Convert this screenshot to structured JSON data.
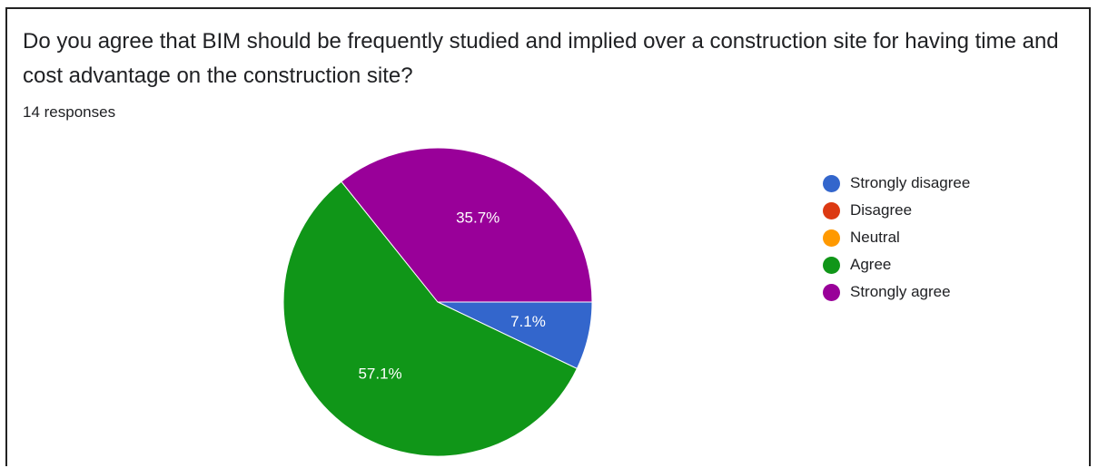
{
  "question": "Do you agree that BIM should be frequently studied and implied over a construction site for having time and cost advantage on the construction site?",
  "responses_text": "14 responses",
  "chart_data": {
    "type": "pie",
    "title": "Do you agree that BIM should be frequently studied and implied over a construction site for having time and cost advantage on the construction site?",
    "total_responses": 14,
    "legend_position": "right",
    "slices": [
      {
        "label": "Strongly disagree",
        "value": 7.1,
        "color": "#3366cc",
        "data_label": "7.1%"
      },
      {
        "label": "Disagree",
        "value": 0,
        "color": "#dc3912",
        "data_label": ""
      },
      {
        "label": "Neutral",
        "value": 0,
        "color": "#ff9900",
        "data_label": ""
      },
      {
        "label": "Agree",
        "value": 57.1,
        "color": "#109618",
        "data_label": "57.1%"
      },
      {
        "label": "Strongly agree",
        "value": 35.7,
        "color": "#990099",
        "data_label": "35.7%"
      }
    ]
  }
}
